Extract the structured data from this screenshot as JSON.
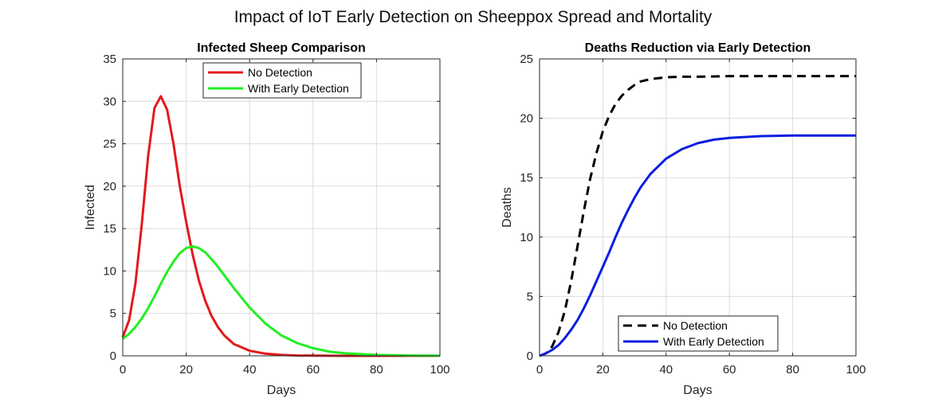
{
  "figure": {
    "suptitle": "Impact of IoT Early Detection on Sheeppox Spread and Mortality"
  },
  "chart_data": [
    {
      "type": "line",
      "title": "Infected Sheep Comparison",
      "xlabel": "Days",
      "ylabel": "Infected",
      "xlim": [
        0,
        100
      ],
      "ylim": [
        0,
        35
      ],
      "xticks": [
        0,
        20,
        40,
        60,
        80,
        100
      ],
      "yticks": [
        0,
        5,
        10,
        15,
        20,
        25,
        30,
        35
      ],
      "grid": true,
      "legend_position": "top-center",
      "series": [
        {
          "name": "No Detection",
          "color": "#e31a1c",
          "dash": "solid",
          "x": [
            0,
            2,
            4,
            6,
            8,
            10,
            12,
            14,
            16,
            18,
            20,
            22,
            24,
            26,
            28,
            30,
            32,
            35,
            40,
            45,
            50,
            55,
            60,
            70,
            80,
            90,
            100
          ],
          "y": [
            2.2,
            4.2,
            8.5,
            15.5,
            23.5,
            29.2,
            30.6,
            29.0,
            25.0,
            20.0,
            15.8,
            12.0,
            8.9,
            6.5,
            4.7,
            3.4,
            2.4,
            1.4,
            0.6,
            0.25,
            0.1,
            0.04,
            0.02,
            0.0,
            0.0,
            0.0,
            0.0
          ]
        },
        {
          "name": "With Early Detection",
          "color": "#22ee22",
          "dash": "solid",
          "x": [
            0,
            2,
            4,
            6,
            8,
            10,
            12,
            14,
            16,
            18,
            20,
            22,
            24,
            26,
            28,
            30,
            32,
            35,
            40,
            45,
            50,
            55,
            60,
            65,
            70,
            80,
            90,
            100
          ],
          "y": [
            2.0,
            2.6,
            3.4,
            4.4,
            5.6,
            7.0,
            8.5,
            9.9,
            11.1,
            12.1,
            12.7,
            12.9,
            12.7,
            12.2,
            11.4,
            10.5,
            9.5,
            8.0,
            5.7,
            3.8,
            2.4,
            1.5,
            0.9,
            0.5,
            0.3,
            0.1,
            0.04,
            0.01
          ]
        }
      ]
    },
    {
      "type": "line",
      "title": "Deaths Reduction via Early Detection",
      "xlabel": "Days",
      "ylabel": "Deaths",
      "xlim": [
        0,
        100
      ],
      "ylim": [
        0,
        25
      ],
      "xticks": [
        0,
        20,
        40,
        60,
        80,
        100
      ],
      "yticks": [
        0,
        5,
        10,
        15,
        20,
        25
      ],
      "grid": true,
      "legend_position": "bottom-center",
      "series": [
        {
          "name": "No Detection",
          "color": "#000000",
          "dash": "dashed",
          "x": [
            0,
            2,
            4,
            6,
            8,
            10,
            12,
            14,
            16,
            18,
            20,
            22,
            24,
            26,
            28,
            30,
            32,
            35,
            40,
            45,
            50,
            60,
            70,
            80,
            90,
            100
          ],
          "y": [
            0,
            0.2,
            0.8,
            2.0,
            3.8,
            6.3,
            9.2,
            12.2,
            14.9,
            17.1,
            18.9,
            20.2,
            21.2,
            21.9,
            22.4,
            22.8,
            23.1,
            23.3,
            23.45,
            23.5,
            23.5,
            23.55,
            23.55,
            23.55,
            23.55,
            23.55
          ]
        },
        {
          "name": "With Early Detection",
          "color": "#0a1ee0",
          "dash": "solid",
          "x": [
            0,
            2,
            4,
            6,
            8,
            10,
            12,
            14,
            16,
            18,
            20,
            22,
            24,
            26,
            28,
            30,
            32,
            35,
            40,
            45,
            50,
            55,
            60,
            70,
            80,
            90,
            100
          ],
          "y": [
            0,
            0.2,
            0.5,
            0.9,
            1.5,
            2.2,
            3.0,
            4.0,
            5.1,
            6.3,
            7.5,
            8.7,
            10.0,
            11.2,
            12.3,
            13.3,
            14.2,
            15.3,
            16.6,
            17.4,
            17.9,
            18.2,
            18.35,
            18.5,
            18.55,
            18.55,
            18.55
          ]
        }
      ]
    }
  ]
}
